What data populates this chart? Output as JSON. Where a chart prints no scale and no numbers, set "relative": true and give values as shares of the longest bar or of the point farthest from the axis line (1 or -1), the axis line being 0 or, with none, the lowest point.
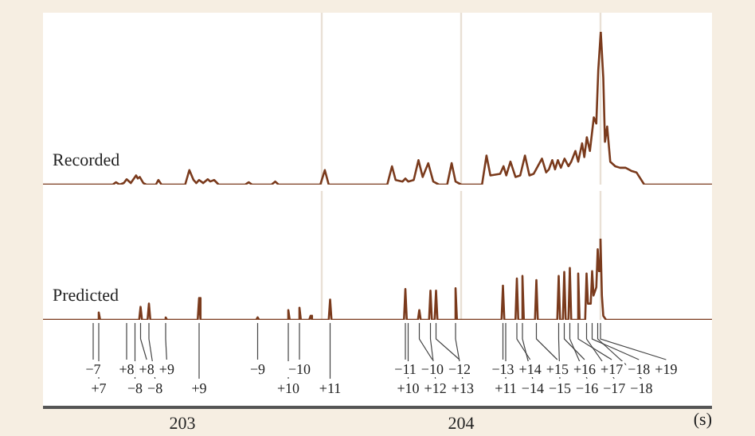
{
  "chart_data": [
    {
      "type": "line",
      "relative": true,
      "xlim": [
        202.5,
        204.9
      ],
      "tick_labels": false,
      "legend": false,
      "grid": false,
      "marker": "none",
      "line_style": "solid",
      "x": [
        202.5,
        202.75,
        202.762,
        202.775,
        202.79,
        202.8,
        202.815,
        202.834,
        202.84,
        202.847,
        202.86,
        202.87,
        202.905,
        202.914,
        202.925,
        203.01,
        203.025,
        203.04,
        203.05,
        203.06,
        203.075,
        203.091,
        203.1,
        203.114,
        203.13,
        203.225,
        203.238,
        203.25,
        203.32,
        203.333,
        203.345,
        203.495,
        203.511,
        203.525,
        203.735,
        203.752,
        203.765,
        203.79,
        203.8,
        203.81,
        203.83,
        203.847,
        203.862,
        203.882,
        203.9,
        203.92,
        203.95,
        203.966,
        203.98,
        204.0,
        204.075,
        204.091,
        204.105,
        204.14,
        204.152,
        204.162,
        204.177,
        204.195,
        204.212,
        204.229,
        204.245,
        204.26,
        204.29,
        204.305,
        204.315,
        204.327,
        204.337,
        204.347,
        204.358,
        204.371,
        204.385,
        204.395,
        204.41,
        204.42,
        204.434,
        204.442,
        204.451,
        204.462,
        204.476,
        204.485,
        204.492,
        204.501,
        204.51,
        204.516,
        204.524,
        204.535,
        204.553,
        204.57,
        204.59,
        204.61,
        204.629,
        204.657,
        204.9
      ],
      "series": [
        {
          "name": "Recorded",
          "color": "#7a3a1c",
          "values": [
            0,
            0,
            0.015,
            0,
            0.01,
            0.035,
            0.01,
            0.06,
            0.04,
            0.05,
            0.01,
            0,
            0,
            0.03,
            0,
            0,
            0.095,
            0.03,
            0.01,
            0.03,
            0.01,
            0.035,
            0.02,
            0.03,
            0,
            0,
            0.015,
            0,
            0,
            0.02,
            0,
            0,
            0.095,
            0,
            0,
            0.12,
            0.03,
            0.02,
            0.04,
            0.02,
            0.03,
            0.16,
            0.05,
            0.14,
            0.02,
            0,
            0,
            0.14,
            0.02,
            0,
            0,
            0.19,
            0.06,
            0.07,
            0.12,
            0.06,
            0.15,
            0.05,
            0.06,
            0.19,
            0.06,
            0.07,
            0.17,
            0.08,
            0.1,
            0.16,
            0.1,
            0.16,
            0.11,
            0.17,
            0.12,
            0.15,
            0.22,
            0.15,
            0.27,
            0.18,
            0.31,
            0.22,
            0.44,
            0.4,
            0.75,
            1,
            0.7,
            0.28,
            0.38,
            0.15,
            0.12,
            0.11,
            0.11,
            0.09,
            0.08,
            0,
            0
          ]
        }
      ],
      "ref_lines": [
        {
          "axis": "x",
          "value": 203.5
        },
        {
          "axis": "x",
          "value": 204.0
        },
        {
          "axis": "x",
          "value": 204.5
        }
      ]
    },
    {
      "type": "line",
      "relative": true,
      "xlim": [
        202.5,
        204.9
      ],
      "xticks": [
        203,
        204
      ],
      "xlabel": "(s)",
      "legend": false,
      "grid": false,
      "marker": "none",
      "line_style": "solid",
      "x": [
        202.5,
        202.695,
        202.7,
        202.705,
        202.845,
        202.85,
        202.855,
        202.875,
        202.88,
        202.885,
        202.935,
        202.94,
        202.945,
        203.055,
        203.06,
        203.065,
        203.265,
        203.27,
        203.275,
        203.375,
        203.38,
        203.385,
        203.415,
        203.42,
        203.425,
        203.455,
        203.46,
        203.465,
        203.525,
        203.53,
        203.535,
        203.795,
        203.8,
        203.805,
        203.845,
        203.85,
        203.855,
        203.885,
        203.89,
        203.895,
        203.905,
        203.91,
        203.915,
        203.975,
        203.98,
        203.985,
        204.145,
        204.15,
        204.155,
        204.195,
        204.2,
        204.205,
        204.215,
        204.22,
        204.225,
        204.265,
        204.27,
        204.275,
        204.345,
        204.35,
        204.355,
        204.365,
        204.37,
        204.375,
        204.385,
        204.39,
        204.395,
        204.415,
        204.42,
        204.425,
        204.445,
        204.45,
        204.455,
        204.465,
        204.47,
        204.475,
        204.485,
        204.49,
        204.495,
        204.5,
        204.505,
        204.51,
        204.52,
        204.9
      ],
      "series": [
        {
          "name": "Predicted",
          "color": "#7a3a1c",
          "values": [
            0,
            0,
            0.09,
            0,
            0,
            0.16,
            0,
            0,
            0.2,
            0,
            0,
            0.03,
            0,
            0,
            0.27,
            0,
            0,
            0.03,
            0,
            0,
            0.12,
            0,
            0,
            0.15,
            0,
            0,
            0.05,
            0,
            0,
            0.25,
            0,
            0,
            0.38,
            0,
            0,
            0.12,
            0,
            0,
            0.36,
            0,
            0,
            0.36,
            0,
            0,
            0.39,
            0,
            0,
            0.42,
            0,
            0,
            0.51,
            0,
            0,
            0.54,
            0,
            0,
            0.49,
            0,
            0,
            0.54,
            0,
            0,
            0.59,
            0,
            0,
            0.64,
            0,
            0,
            0.57,
            0,
            0,
            0.57,
            0.2,
            0.2,
            0.6,
            0.3,
            0.4,
            0.87,
            0.6,
            1,
            0.3,
            0.05,
            0,
            0
          ]
        }
      ],
      "ref_lines": [
        {
          "axis": "x",
          "value": 203.5
        },
        {
          "axis": "x",
          "value": 204.0
        },
        {
          "axis": "x",
          "value": 204.5
        }
      ],
      "annotations": [
        {
          "text": "−7",
          "x": 202.68,
          "y": 0
        },
        {
          "text": "+7",
          "x": 202.7,
          "y": 0
        },
        {
          "text": "+8",
          "x": 202.8,
          "y": 0
        },
        {
          "text": "−8",
          "x": 202.83,
          "y": 0
        },
        {
          "text": "+8",
          "x": 202.85,
          "y": 0
        },
        {
          "text": "−8",
          "x": 202.88,
          "y": 0
        },
        {
          "text": "+9",
          "x": 202.94,
          "y": 0
        },
        {
          "text": "+9",
          "x": 203.06,
          "y": 0
        },
        {
          "text": "−9",
          "x": 203.27,
          "y": 0
        },
        {
          "text": "+10",
          "x": 203.38,
          "y": 0
        },
        {
          "text": "−10",
          "x": 203.42,
          "y": 0
        },
        {
          "text": "+11",
          "x": 203.53,
          "y": 0
        },
        {
          "text": "−11",
          "x": 203.8,
          "y": 0
        },
        {
          "text": "+10",
          "x": 203.81,
          "y": 0
        },
        {
          "text": "−10",
          "x": 203.85,
          "y": 0
        },
        {
          "text": "+12",
          "x": 203.89,
          "y": 0
        },
        {
          "text": "−12",
          "x": 203.91,
          "y": 0
        },
        {
          "text": "+13",
          "x": 203.98,
          "y": 0
        },
        {
          "text": "−13",
          "x": 204.15,
          "y": 0
        },
        {
          "text": "+11",
          "x": 204.16,
          "y": 0
        },
        {
          "text": "+14",
          "x": 204.2,
          "y": 0
        },
        {
          "text": "−14",
          "x": 204.22,
          "y": 0
        },
        {
          "text": "+15",
          "x": 204.27,
          "y": 0
        },
        {
          "text": "−15",
          "x": 204.35,
          "y": 0
        },
        {
          "text": "+16",
          "x": 204.37,
          "y": 0
        },
        {
          "text": "−16",
          "x": 204.39,
          "y": 0
        },
        {
          "text": "+17",
          "x": 204.42,
          "y": 0
        },
        {
          "text": "−17",
          "x": 204.45,
          "y": 0
        },
        {
          "text": "−18",
          "x": 204.47,
          "y": 0
        },
        {
          "text": "−18",
          "x": 204.49,
          "y": 0
        },
        {
          "text": "+19",
          "x": 204.5,
          "y": 0
        }
      ]
    }
  ]
}
